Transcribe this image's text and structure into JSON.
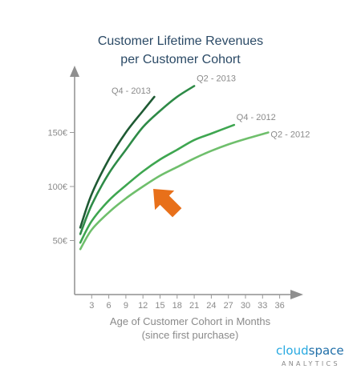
{
  "chart_data": {
    "type": "line",
    "title": [
      "Customer Lifetime Revenues",
      "per Customer Cohort"
    ],
    "xlabel": [
      "Age of Customer Cohort in Months",
      "(since first purchase)"
    ],
    "ylabel": "",
    "x_ticks": [
      3,
      6,
      9,
      12,
      15,
      18,
      21,
      24,
      27,
      30,
      33,
      36
    ],
    "y_ticks": [
      50,
      100,
      150
    ],
    "y_tick_labels": [
      "50€",
      "100€",
      "150€"
    ],
    "xlim": [
      0,
      39
    ],
    "ylim": [
      0,
      210
    ],
    "legend": "labels at line ends",
    "grid": false,
    "series": [
      {
        "name": "Q4 - 2013",
        "color": "#1e5a33",
        "x": [
          1,
          3,
          6,
          9,
          12,
          14
        ],
        "y": [
          62,
          93,
          125,
          150,
          170,
          183
        ]
      },
      {
        "name": "Q2 - 2013",
        "color": "#2e8b47",
        "x": [
          1,
          3,
          6,
          9,
          12,
          15,
          18,
          21
        ],
        "y": [
          56,
          83,
          112,
          134,
          155,
          170,
          183,
          193
        ]
      },
      {
        "name": "Q4 - 2012",
        "color": "#3ea650",
        "x": [
          1,
          3,
          6,
          9,
          12,
          15,
          18,
          21,
          24,
          28
        ],
        "y": [
          48,
          68,
          87,
          101,
          114,
          125,
          134,
          143,
          149,
          157
        ]
      },
      {
        "name": "Q2 - 2012",
        "color": "#6fbf6c",
        "x": [
          1,
          3,
          6,
          9,
          12,
          15,
          18,
          21,
          24,
          27,
          30,
          34
        ],
        "y": [
          42,
          60,
          76,
          89,
          100,
          110,
          118,
          126,
          133,
          139,
          144,
          150
        ]
      }
    ],
    "annotations": [
      {
        "type": "arrow",
        "color": "#e8701a",
        "points_to": "Q4 - 2012",
        "direction": "up-left"
      }
    ]
  },
  "logo": {
    "part1": "cloud",
    "part2": "space",
    "sub": "ANALYTICS"
  }
}
